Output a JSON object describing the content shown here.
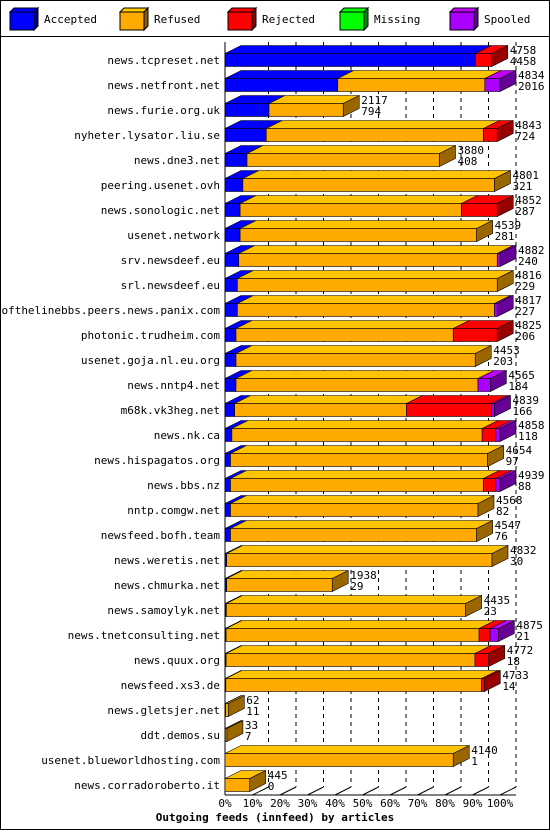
{
  "chart_data": {
    "type": "bar",
    "stacked": true,
    "orientation": "horizontal",
    "title": "Outgoing feeds (innfeed) by articles",
    "legend": [
      {
        "name": "Accepted",
        "color": "#0000ff"
      },
      {
        "name": "Refused",
        "color": "#ffaa00"
      },
      {
        "name": "Rejected",
        "color": "#ff0000"
      },
      {
        "name": "Missing",
        "color": "#00ff00"
      },
      {
        "name": "Spooled",
        "color": "#aa00ff"
      }
    ],
    "legend_position": "top",
    "x_ticks": [
      "0%",
      "10%",
      "20%",
      "30%",
      "40%",
      "50%",
      "60%",
      "70%",
      "80%",
      "90%",
      "100%"
    ],
    "xlim": [
      0,
      100
    ],
    "grid": true,
    "rows": [
      {
        "label": "news.tcpreset.net",
        "offered": "4758",
        "accepted": "4458",
        "segments": [
          91.0,
          0,
          6.0,
          0,
          0
        ]
      },
      {
        "label": "news.netfront.net",
        "offered": "4834",
        "accepted": "2016",
        "segments": [
          41.0,
          53.5,
          0,
          0,
          5.5
        ]
      },
      {
        "label": "news.furie.org.uk",
        "offered": "2117",
        "accepted": "794",
        "segments": [
          16.0,
          27.0,
          0,
          0,
          0
        ]
      },
      {
        "label": "nyheter.lysator.liu.se",
        "offered": "4843",
        "accepted": "724",
        "segments": [
          15.0,
          79.0,
          5.0,
          0,
          0
        ]
      },
      {
        "label": "news.dne3.net",
        "offered": "3880",
        "accepted": "408",
        "segments": [
          8.0,
          70.0,
          0,
          0,
          0
        ]
      },
      {
        "label": "peering.usenet.ovh",
        "offered": "4801",
        "accepted": "321",
        "segments": [
          6.5,
          91.5,
          0,
          0,
          0
        ]
      },
      {
        "label": "news.sonologic.net",
        "offered": "4852",
        "accepted": "287",
        "segments": [
          5.5,
          80.5,
          13.0,
          0,
          0
        ]
      },
      {
        "label": "usenet.network",
        "offered": "4539",
        "accepted": "281",
        "segments": [
          5.5,
          86.0,
          0,
          0,
          0
        ]
      },
      {
        "label": "srv.newsdeef.eu",
        "offered": "4882",
        "accepted": "240",
        "segments": [
          5.0,
          94.0,
          0,
          0,
          1.0
        ]
      },
      {
        "label": "srl.newsdeef.eu",
        "offered": "4816",
        "accepted": "229",
        "segments": [
          4.5,
          94.5,
          0,
          0,
          0
        ]
      },
      {
        "label": "endofthelinebbs.peers.news.panix.com",
        "offered": "4817",
        "accepted": "227",
        "segments": [
          4.5,
          93.5,
          0,
          0,
          1.0
        ]
      },
      {
        "label": "photonic.trudheim.com",
        "offered": "4825",
        "accepted": "206",
        "segments": [
          4.0,
          79.0,
          16.0,
          0,
          0
        ]
      },
      {
        "label": "usenet.goja.nl.eu.org",
        "offered": "4453",
        "accepted": "203",
        "segments": [
          4.0,
          87.0,
          0,
          0,
          0
        ]
      },
      {
        "label": "news.nntp4.net",
        "offered": "4565",
        "accepted": "184",
        "segments": [
          4.0,
          88.0,
          0,
          0,
          4.5
        ]
      },
      {
        "label": "m68k.vk3heg.net",
        "offered": "4839",
        "accepted": "166",
        "segments": [
          3.5,
          62.5,
          31.0,
          0,
          1.0
        ]
      },
      {
        "label": "news.nk.ca",
        "offered": "4858",
        "accepted": "118",
        "segments": [
          2.5,
          91.0,
          5.0,
          0,
          1.5
        ]
      },
      {
        "label": "news.hispagatos.org",
        "offered": "4654",
        "accepted": "97",
        "segments": [
          2.0,
          93.5,
          0,
          0,
          0
        ]
      },
      {
        "label": "news.bbs.nz",
        "offered": "4939",
        "accepted": "88",
        "segments": [
          2.0,
          92.0,
          4.5,
          0,
          1.5
        ]
      },
      {
        "label": "nntp.comgw.net",
        "offered": "4568",
        "accepted": "82",
        "segments": [
          2.0,
          90.0,
          0,
          0,
          0
        ]
      },
      {
        "label": "newsfeed.bofh.team",
        "offered": "4547",
        "accepted": "76",
        "segments": [
          2.0,
          89.5,
          0,
          0,
          0
        ]
      },
      {
        "label": "news.weretis.net",
        "offered": "4832",
        "accepted": "30",
        "segments": [
          0.6,
          96.5,
          0,
          0,
          0
        ]
      },
      {
        "label": "news.chmurka.net",
        "offered": "1938",
        "accepted": "29",
        "segments": [
          0.6,
          38.4,
          0,
          0,
          0
        ]
      },
      {
        "label": "news.samoylyk.net",
        "offered": "4435",
        "accepted": "23",
        "segments": [
          0.5,
          87.0,
          0,
          0,
          0
        ]
      },
      {
        "label": "news.tnetconsulting.net",
        "offered": "4875",
        "accepted": "21",
        "segments": [
          0.4,
          92.0,
          4.0,
          0,
          3.0
        ]
      },
      {
        "label": "news.quux.org",
        "offered": "4772",
        "accepted": "18",
        "segments": [
          0.4,
          90.5,
          5.0,
          0,
          0
        ]
      },
      {
        "label": "newsfeed.xs3.de",
        "offered": "4733",
        "accepted": "14",
        "segments": [
          0.3,
          93.0,
          1.0,
          0,
          0
        ]
      },
      {
        "label": "news.gletsjer.net",
        "offered": "62",
        "accepted": "11",
        "segments": [
          0.2,
          1.0,
          0,
          0,
          0
        ]
      },
      {
        "label": "ddt.demos.su",
        "offered": "33",
        "accepted": "7",
        "segments": [
          0.1,
          0.6,
          0,
          0,
          0
        ]
      },
      {
        "label": "usenet.blueworldhosting.com",
        "offered": "4140",
        "accepted": "1",
        "segments": [
          0.0,
          83.0,
          0,
          0,
          0
        ]
      },
      {
        "label": "news.corradoroberto.it",
        "offered": "445",
        "accepted": "0",
        "segments": [
          0.0,
          9.0,
          0,
          0,
          0
        ]
      }
    ]
  }
}
